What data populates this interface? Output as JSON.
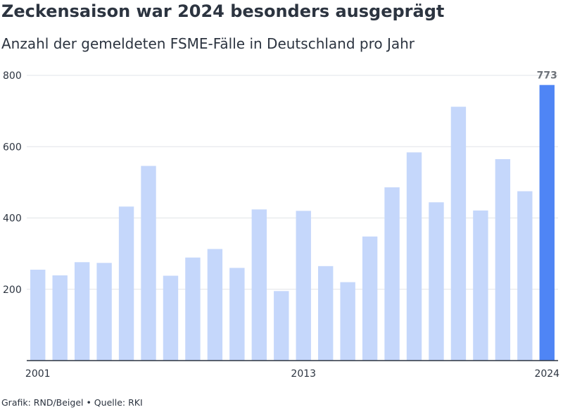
{
  "title": "Zeckensaison war 2024 besonders ausgeprägt",
  "subtitle": "Anzahl der gemeldeten FSME-Fälle in Deutschland pro Jahr",
  "footer": "Grafik: RND/Beigel • Quelle: RKI",
  "colors": {
    "bar": "#c5d7fb",
    "highlight": "#4f85f5",
    "grid": "#e1e4e8",
    "axis": "#2c3440",
    "text": "#2c3440",
    "value_label": "#6f747b"
  },
  "chart_data": {
    "type": "bar",
    "title": "Zeckensaison war 2024 besonders ausgeprägt",
    "subtitle": "Anzahl der gemeldeten FSME-Fälle in Deutschland pro Jahr",
    "categories": [
      "2001",
      "2002",
      "2003",
      "2004",
      "2005",
      "2006",
      "2007",
      "2008",
      "2009",
      "2010",
      "2011",
      "2012",
      "2013",
      "2014",
      "2015",
      "2016",
      "2017",
      "2018",
      "2019",
      "2020",
      "2021",
      "2022",
      "2023",
      "2024"
    ],
    "values": [
      255,
      239,
      276,
      274,
      432,
      546,
      238,
      289,
      313,
      260,
      424,
      195,
      420,
      265,
      220,
      348,
      486,
      584,
      444,
      712,
      421,
      565,
      475,
      773
    ],
    "x_tick_labels": [
      "2001",
      "2013",
      "2024"
    ],
    "y_ticks": [
      200,
      400,
      600,
      800
    ],
    "ylim": [
      0,
      800
    ],
    "grid": true,
    "highlight_category": "2024",
    "value_labels": [
      {
        "category": "2024",
        "text": "773"
      }
    ]
  }
}
